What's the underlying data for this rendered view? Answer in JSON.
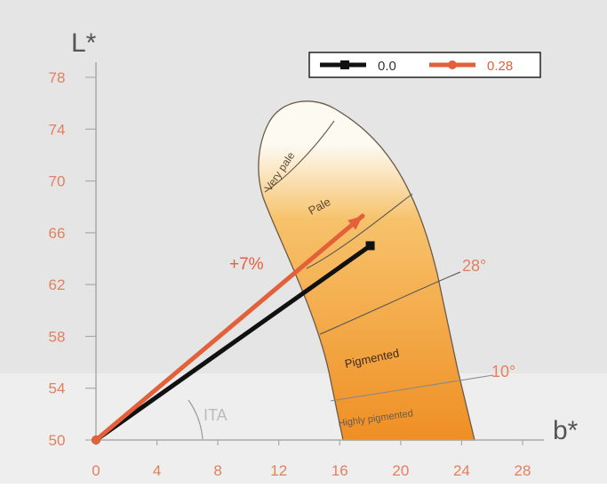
{
  "chart_data": {
    "type": "line",
    "xlabel": "b*",
    "ylabel": "L*",
    "xlim": [
      0,
      28
    ],
    "ylim": [
      50,
      78
    ],
    "x_ticks": [
      "0",
      "4",
      "8",
      "12",
      "16",
      "20",
      "24",
      "28"
    ],
    "y_ticks": [
      "50",
      "54",
      "58",
      "62",
      "66",
      "70",
      "74",
      "78"
    ],
    "series": [
      {
        "name": "0.0",
        "color": "#111111",
        "x": [
          0,
          18.0
        ],
        "y": [
          50,
          65.0
        ]
      },
      {
        "name": "0.28",
        "color": "#e2603a",
        "x": [
          0,
          17.5
        ],
        "y": [
          50,
          67.3
        ]
      }
    ],
    "legend_position": "top-right",
    "annotations": {
      "gain": "+7%",
      "angle_28": "28°",
      "angle_10": "10°",
      "ita": "ITA"
    },
    "zones": [
      "Very pale",
      "Pale",
      "Pigmented",
      "Highly pigmented"
    ],
    "colors": {
      "background": "#e5e5e5",
      "band": "#eeeeee",
      "tick_label": "#e2805f",
      "axis": "#aaaaaa",
      "zone_light": "#fdfaf2",
      "zone_mid": "#f7c26b",
      "zone_dark": "#ef8f24"
    }
  }
}
